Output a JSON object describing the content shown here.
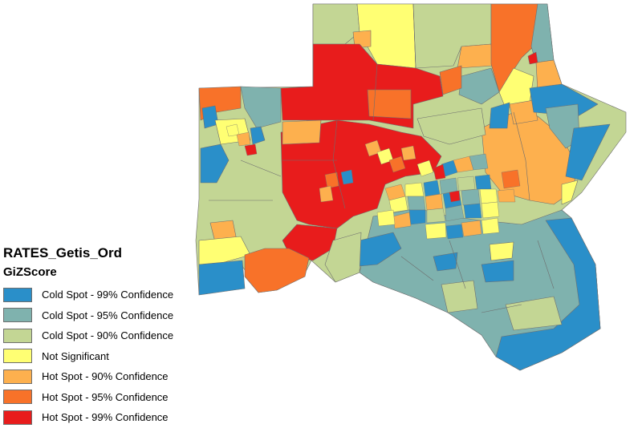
{
  "legend": {
    "title": "RATES_Getis_Ord",
    "field": "GiZScore",
    "items": [
      {
        "label": "Cold Spot - 99% Confidence",
        "color": "#2a8fc9"
      },
      {
        "label": "Cold Spot - 95% Confidence",
        "color": "#7fb2ae"
      },
      {
        "label": "Cold Spot - 90% Confidence",
        "color": "#c3d694"
      },
      {
        "label": "Not Significant",
        "color": "#ffff73"
      },
      {
        "label": "Hot Spot - 90% Confidence",
        "color": "#fdb04e"
      },
      {
        "label": "Hot Spot - 95% Confidence",
        "color": "#f87229"
      },
      {
        "label": "Hot Spot - 99% Confidence",
        "color": "#e81c1c"
      }
    ]
  }
}
